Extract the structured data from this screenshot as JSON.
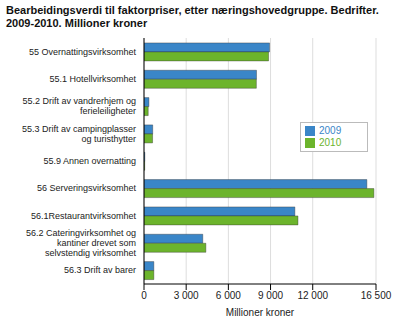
{
  "chart_data": {
    "type": "bar",
    "orientation": "horizontal",
    "title": "Bearbeidingsverdi til faktorpriser, etter næringshovedgruppe. Bedrifter. 2009-2010. Millioner kroner",
    "x_label": "Millioner kroner",
    "categories": [
      "55 Overnattingsvirksomhet",
      "55.1 Hotellvirksomhet",
      "55.2 Drift av vandrerhjem og ferieleiligheter",
      "55.3 Drift av campingplasser og turisthytter",
      "55.9 Annen overnatting",
      "56 Serveringsvirksomhet",
      "56.1Restaurantvirksomhet",
      "56.2 Cateringvirksomhet og kantiner drevet som selvstendig virksomhet",
      "56.3 Drift av barer"
    ],
    "series": [
      {
        "name": "2009",
        "color": "#3a86c8",
        "values": [
          8930,
          8000,
          350,
          620,
          60,
          15850,
          10730,
          4180,
          700
        ]
      },
      {
        "name": "2010",
        "color": "#6cb42c",
        "values": [
          8860,
          7990,
          300,
          610,
          50,
          16350,
          10950,
          4400,
          700
        ]
      }
    ],
    "xlim": [
      0,
      16500
    ],
    "xticks": [
      0,
      {
        "value": 3000,
        "label": "3 000"
      },
      {
        "value": 6000,
        "label": "6 000"
      },
      {
        "value": 9000,
        "label": "9 000"
      },
      {
        "value": 12000,
        "label": "12 000"
      },
      {
        "value": 16500,
        "label": "16 500"
      }
    ],
    "grid": true,
    "legend": "upper right"
  }
}
